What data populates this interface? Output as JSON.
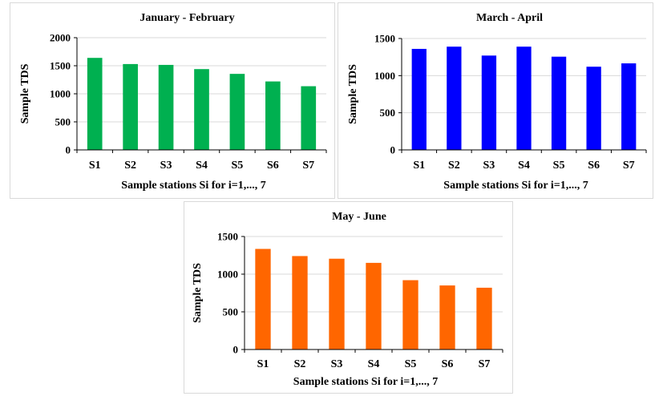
{
  "chart_data": [
    {
      "type": "bar",
      "title": "January - February",
      "xlabel": "Sample stations Si for i=1,..., 7",
      "ylabel": "Sample TDS",
      "categories": [
        "S1",
        "S2",
        "S3",
        "S4",
        "S5",
        "S6",
        "S7"
      ],
      "values": [
        1640,
        1530,
        1515,
        1440,
        1355,
        1220,
        1135
      ],
      "ylim": [
        0,
        2000
      ],
      "yticks": [
        0,
        500,
        1000,
        1500,
        2000
      ],
      "color": "#00b050",
      "grid": true
    },
    {
      "type": "bar",
      "title": "March - April",
      "xlabel": "Sample stations Si for i=1,..., 7",
      "ylabel": "Sample TDS",
      "categories": [
        "S1",
        "S2",
        "S3",
        "S4",
        "S5",
        "S6",
        "S7"
      ],
      "values": [
        1360,
        1390,
        1270,
        1390,
        1255,
        1120,
        1165
      ],
      "ylim": [
        0,
        1500
      ],
      "yticks": [
        0,
        500,
        1000,
        1500
      ],
      "color": "#0000ff",
      "grid": true
    },
    {
      "type": "bar",
      "title": "May - June",
      "xlabel": "Sample stations Si for i=1,..., 7",
      "ylabel": "Sample TDS",
      "categories": [
        "S1",
        "S2",
        "S3",
        "S4",
        "S5",
        "S6",
        "S7"
      ],
      "values": [
        1335,
        1240,
        1205,
        1150,
        920,
        850,
        820
      ],
      "ylim": [
        0,
        1500
      ],
      "yticks": [
        0,
        500,
        1000,
        1500
      ],
      "color": "#ff6600",
      "grid": true
    }
  ]
}
